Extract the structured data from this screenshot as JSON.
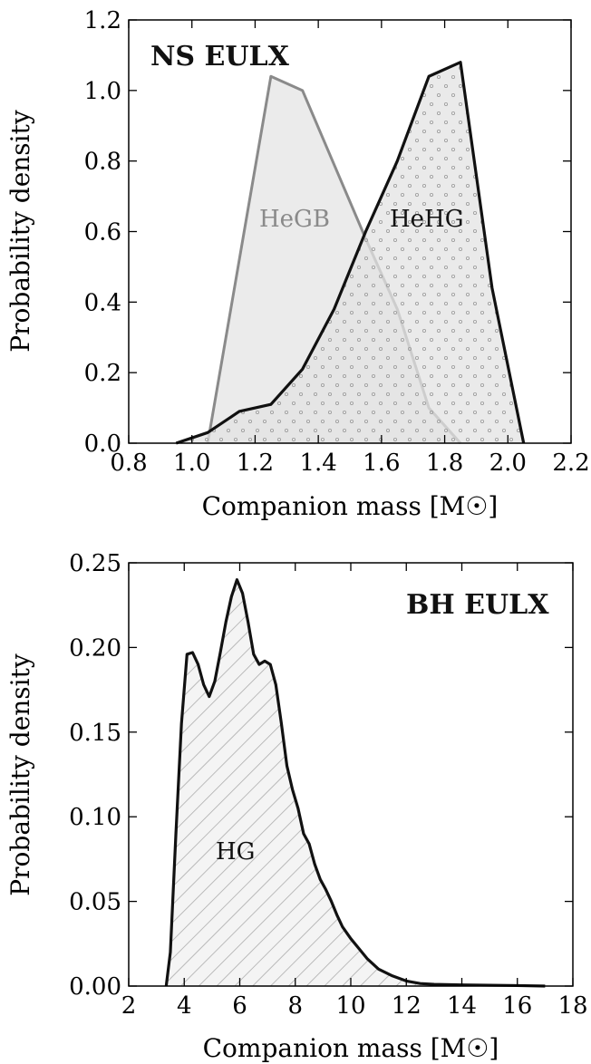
{
  "chart_data": [
    {
      "type": "area",
      "panel_label": "NS EULX",
      "xlabel": "Companion mass [M☉]",
      "ylabel": "Probability density",
      "xlim": [
        0.8,
        2.2
      ],
      "ylim": [
        0.0,
        1.2
      ],
      "x_ticks": [
        "0.8",
        "1.0",
        "1.2",
        "1.4",
        "1.6",
        "1.8",
        "2.0",
        "2.2"
      ],
      "y_ticks": [
        "0.0",
        "0.2",
        "0.4",
        "0.6",
        "0.8",
        "1.0",
        "1.2"
      ],
      "grid": false,
      "series": [
        {
          "name": "HeGB",
          "color": "#8a8a8a",
          "fill": "#ebebeb",
          "x": [
            1.05,
            1.25,
            1.35,
            1.45,
            1.55,
            1.65,
            1.75,
            1.85
          ],
          "y": [
            0.0,
            1.04,
            1.0,
            0.79,
            0.58,
            0.38,
            0.1,
            0.0
          ]
        },
        {
          "name": "HeHG",
          "color": "#111111",
          "fill": "#dcdcdc",
          "x": [
            0.95,
            1.05,
            1.15,
            1.25,
            1.35,
            1.45,
            1.55,
            1.65,
            1.75,
            1.85,
            1.95,
            2.05
          ],
          "y": [
            0.0,
            0.03,
            0.09,
            0.11,
            0.21,
            0.38,
            0.6,
            0.8,
            1.04,
            1.08,
            0.44,
            0.0
          ]
        }
      ]
    },
    {
      "type": "area",
      "panel_label": "BH EULX",
      "xlabel": "Companion mass [M☉]",
      "ylabel": "Probability density",
      "xlim": [
        2,
        18
      ],
      "ylim": [
        0.0,
        0.25
      ],
      "x_ticks": [
        "2",
        "4",
        "6",
        "8",
        "10",
        "12",
        "14",
        "16",
        "18"
      ],
      "y_ticks": [
        "0.00",
        "0.05",
        "0.10",
        "0.15",
        "0.20",
        "0.25"
      ],
      "grid": false,
      "series": [
        {
          "name": "HG",
          "color": "#111111",
          "fill": "hatched",
          "x": [
            3.35,
            3.5,
            3.7,
            3.9,
            4.1,
            4.3,
            4.5,
            4.7,
            4.9,
            5.1,
            5.3,
            5.5,
            5.7,
            5.9,
            6.1,
            6.3,
            6.5,
            6.7,
            6.9,
            7.1,
            7.3,
            7.5,
            7.7,
            7.9,
            8.1,
            8.3,
            8.5,
            8.7,
            8.9,
            9.1,
            9.3,
            9.5,
            9.7,
            10.0,
            10.3,
            10.6,
            11.0,
            11.5,
            12.0,
            12.5,
            13.0,
            14.0,
            15.0,
            16.0,
            17.0
          ],
          "y": [
            0.0,
            0.02,
            0.09,
            0.155,
            0.196,
            0.197,
            0.19,
            0.178,
            0.171,
            0.18,
            0.197,
            0.215,
            0.23,
            0.24,
            0.232,
            0.215,
            0.196,
            0.19,
            0.192,
            0.19,
            0.178,
            0.155,
            0.13,
            0.116,
            0.105,
            0.09,
            0.084,
            0.072,
            0.063,
            0.057,
            0.05,
            0.042,
            0.035,
            0.028,
            0.022,
            0.016,
            0.01,
            0.006,
            0.003,
            0.0015,
            0.001,
            0.0007,
            0.0005,
            0.0003,
            0.0
          ]
        }
      ]
    }
  ]
}
